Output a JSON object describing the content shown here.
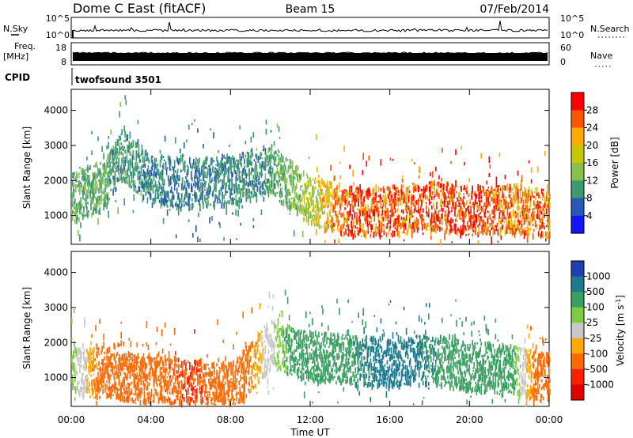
{
  "header": {
    "station": "Dome C East (fitACF)",
    "beam": "Beam 15",
    "date": "07/Feb/2014"
  },
  "noise_panel": {
    "left_label": "N.Sky",
    "right_label": "N.Search",
    "left_ticks": [
      "10^5",
      "10^0"
    ],
    "right_ticks": [
      "10^5",
      "10^0"
    ]
  },
  "freq_panel": {
    "left_label_line1": "Freq.",
    "left_label_line2": "[MHz]",
    "left_ticks": [
      "18",
      "8"
    ],
    "right_label": "Nave",
    "right_ticks": [
      "60",
      "0"
    ]
  },
  "cpid": {
    "label": "CPID",
    "program": "twofsound 3501"
  },
  "axes": {
    "ylabel": "Slant Range [km]",
    "xlabel": "Time UT",
    "x_tick_labels": [
      "00:00",
      "04:00",
      "08:00",
      "12:00",
      "16:00",
      "20:00",
      "00:00"
    ],
    "y_tick_labels": [
      "1000",
      "2000",
      "3000",
      "4000"
    ]
  },
  "power_colorbar": {
    "label": "Power [dB]",
    "ticks": [
      "28",
      "24",
      "20",
      "16",
      "12",
      "8",
      "4"
    ],
    "colors": [
      "#ff0000",
      "#ff5500",
      "#ffaa00",
      "#c8c800",
      "#88c050",
      "#3c9a70",
      "#285ab4",
      "#1414ff"
    ]
  },
  "velocity_colorbar": {
    "label": "Velocity [m s",
    "label_sup": "-1",
    "label_close": "]",
    "ticks": [
      "1000",
      "500",
      "100",
      "25",
      "-25",
      "-100",
      "-500",
      "-1000"
    ],
    "colors": [
      "#2040b0",
      "#1e7a8c",
      "#3aa060",
      "#80cc40",
      "#c8c8c8",
      "#ffaa00",
      "#ff6a00",
      "#ff2000",
      "#e00000"
    ]
  },
  "chart_data": [
    {
      "type": "heatmap",
      "title": "Power",
      "xlabel": "Time UT",
      "ylabel": "Slant Range [km]",
      "xlim": [
        0,
        24
      ],
      "ylim": [
        180,
        4600
      ],
      "colorbar_ticks": [
        4,
        8,
        12,
        16,
        20,
        24,
        28
      ],
      "series": [
        {
          "name": "Power",
          "x": [
            0,
            1.5,
            2.5,
            4,
            6,
            8,
            10,
            12,
            14,
            16,
            18,
            20,
            22,
            24
          ],
          "y_center": [
            1500,
            1800,
            2700,
            2000,
            1900,
            2000,
            2300,
            1400,
            1100,
            1100,
            1300,
            1100,
            1200,
            1000
          ],
          "values": [
            10,
            9,
            8,
            7,
            6,
            7,
            8,
            14,
            26,
            24,
            24,
            26,
            22,
            22
          ]
        }
      ]
    },
    {
      "type": "heatmap",
      "title": "Velocity",
      "xlabel": "Time UT",
      "ylabel": "Slant Range [km]",
      "xlim": [
        0,
        24
      ],
      "ylim": [
        180,
        4600
      ],
      "colorbar_ticks": [
        -1000,
        -500,
        -100,
        -25,
        25,
        100,
        500,
        1000
      ],
      "series": [
        {
          "name": "Velocity",
          "x": [
            0,
            2,
            4,
            6,
            8,
            10,
            12,
            14,
            16,
            18,
            20,
            22,
            24
          ],
          "y_center": [
            1200,
            1100,
            900,
            800,
            700,
            1900,
            1600,
            1500,
            1400,
            1500,
            1300,
            1200,
            1000
          ],
          "values": [
            50,
            -150,
            -200,
            -300,
            -150,
            10,
            150,
            200,
            600,
            300,
            80,
            100,
            -200
          ]
        }
      ]
    }
  ]
}
